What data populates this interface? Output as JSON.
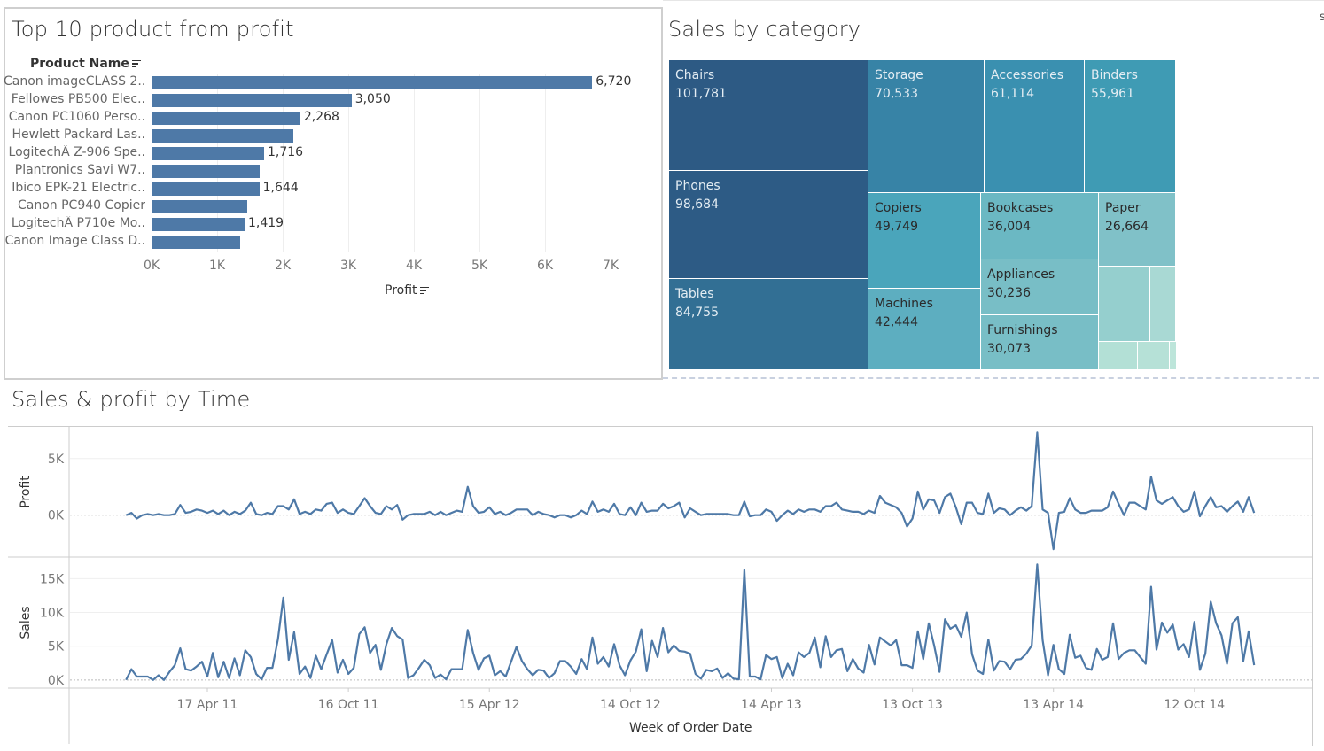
{
  "top_products": {
    "title": "Top 10 product from profit",
    "row_header": "Product Name",
    "axis_title": "Profit",
    "bar_color": "#4e79a7",
    "axis_ticks": [
      "0K",
      "1K",
      "2K",
      "3K",
      "4K",
      "5K",
      "6K",
      "7K"
    ],
    "rows": [
      {
        "name": "Canon imageCLASS 2..",
        "value": 6720,
        "label": "6,720"
      },
      {
        "name": "Fellowes PB500 Elec..",
        "value": 3050,
        "label": "3,050"
      },
      {
        "name": "Canon PC1060 Perso..",
        "value": 2268,
        "label": "2,268"
      },
      {
        "name": "Hewlett Packard Las..",
        "value": 2160,
        "label": ""
      },
      {
        "name": "LogitechÂ Z-906 Spe..",
        "value": 1716,
        "label": "1,716"
      },
      {
        "name": "Plantronics Savi W7..",
        "value": 1650,
        "label": ""
      },
      {
        "name": "Ibico EPK-21 Electric..",
        "value": 1644,
        "label": "1,644"
      },
      {
        "name": "Canon PC940 Copier",
        "value": 1460,
        "label": ""
      },
      {
        "name": "LogitechÂ P710e Mo..",
        "value": 1419,
        "label": "1,419"
      },
      {
        "name": "Canon Image Class D..",
        "value": 1350,
        "label": ""
      }
    ]
  },
  "sales_by_category": {
    "title": "Sales  by category",
    "cells": [
      {
        "name": "Chairs",
        "value": "101,781",
        "color": "#2d5a84"
      },
      {
        "name": "Phones",
        "value": "98,684",
        "color": "#2d5b85"
      },
      {
        "name": "Tables",
        "value": "84,755",
        "color": "#326f94"
      },
      {
        "name": "Storage",
        "value": "70,533",
        "color": "#3783a6"
      },
      {
        "name": "Accessories",
        "value": "61,114",
        "color": "#3a90b0"
      },
      {
        "name": "Binders",
        "value": "55,961",
        "color": "#3f9bb4"
      },
      {
        "name": "Copiers",
        "value": "49,749",
        "color": "#4aa5bb"
      },
      {
        "name": "Machines",
        "value": "42,444",
        "color": "#5daec0"
      },
      {
        "name": "Bookcases",
        "value": "36,004",
        "color": "#6bb8c3"
      },
      {
        "name": "Appliances",
        "value": "30,236",
        "color": "#78bec6"
      },
      {
        "name": "Furnishings",
        "value": "30,073",
        "color": "#78bec6"
      },
      {
        "name": "Paper",
        "value": "26,664",
        "color": "#80c1c8"
      }
    ],
    "small_cell_colors": [
      "#95cfce",
      "#a9d9d4",
      "#b3e0d6",
      "#b6e1d7",
      "#bde5da"
    ]
  },
  "corner_text": "s",
  "time_chart": {
    "title": "Sales  & profit by Time",
    "chart_data": {
      "type": "line",
      "xlabel": "Week of Order Date",
      "line_color": "#4e79a7",
      "x_ticks": [
        {
          "date": "2011-04-17",
          "label": "17 Apr 11"
        },
        {
          "date": "2011-10-16",
          "label": "16 Oct 11"
        },
        {
          "date": "2012-04-15",
          "label": "15 Apr 12"
        },
        {
          "date": "2012-10-14",
          "label": "14 Oct 12"
        },
        {
          "date": "2013-04-14",
          "label": "14 Apr 13"
        },
        {
          "date": "2013-10-13",
          "label": "13 Oct 13"
        },
        {
          "date": "2014-04-13",
          "label": "13 Apr 14"
        },
        {
          "date": "2014-10-12",
          "label": "12 Oct 14"
        }
      ],
      "weeks": [
        "2011-01-02",
        "2011-01-09",
        "2011-01-16",
        "2011-01-23",
        "2011-01-30",
        "2011-02-06",
        "2011-02-13",
        "2011-02-20",
        "2011-02-27",
        "2011-03-06",
        "2011-03-13",
        "2011-03-20",
        "2011-03-27",
        "2011-04-03",
        "2011-04-10",
        "2011-04-17",
        "2011-04-24",
        "2011-05-01",
        "2011-05-08",
        "2011-05-15",
        "2011-05-22",
        "2011-05-29",
        "2011-06-05",
        "2011-06-12",
        "2011-06-19",
        "2011-06-26",
        "2011-07-03",
        "2011-07-10",
        "2011-07-17",
        "2011-07-24",
        "2011-07-31",
        "2011-08-07",
        "2011-08-14",
        "2011-08-21",
        "2011-08-28",
        "2011-09-04",
        "2011-09-11",
        "2011-09-18",
        "2011-09-25",
        "2011-10-02",
        "2011-10-09",
        "2011-10-16",
        "2011-10-23",
        "2011-10-30",
        "2011-11-06",
        "2011-11-13",
        "2011-11-20",
        "2011-11-27",
        "2011-12-04",
        "2011-12-11",
        "2011-12-18",
        "2011-12-25",
        "2012-01-01",
        "2012-01-08",
        "2012-01-15",
        "2012-01-22",
        "2012-01-29",
        "2012-02-05",
        "2012-02-12",
        "2012-02-19",
        "2012-02-26",
        "2012-03-04",
        "2012-03-11",
        "2012-03-18",
        "2012-03-25",
        "2012-04-01",
        "2012-04-08",
        "2012-04-15",
        "2012-04-22",
        "2012-04-29",
        "2012-05-06",
        "2012-05-13",
        "2012-05-20",
        "2012-05-27",
        "2012-06-03",
        "2012-06-10",
        "2012-06-17",
        "2012-06-24",
        "2012-07-01",
        "2012-07-08",
        "2012-07-15",
        "2012-07-22",
        "2012-07-29",
        "2012-08-05",
        "2012-08-12",
        "2012-08-19",
        "2012-08-26",
        "2012-09-02",
        "2012-09-09",
        "2012-09-16",
        "2012-09-23",
        "2012-09-30",
        "2012-10-07",
        "2012-10-14",
        "2012-10-21",
        "2012-10-28",
        "2012-11-04",
        "2012-11-11",
        "2012-11-18",
        "2012-11-25",
        "2012-12-02",
        "2012-12-09",
        "2012-12-16",
        "2012-12-23",
        "2012-12-30",
        "2013-01-06",
        "2013-01-13",
        "2013-01-20",
        "2013-01-27",
        "2013-02-03",
        "2013-02-10",
        "2013-02-17",
        "2013-02-24",
        "2013-03-03",
        "2013-03-10",
        "2013-03-17",
        "2013-03-24",
        "2013-03-31",
        "2013-04-07",
        "2013-04-14",
        "2013-04-21",
        "2013-04-28",
        "2013-05-05",
        "2013-05-12",
        "2013-05-19",
        "2013-05-26",
        "2013-06-02",
        "2013-06-09",
        "2013-06-16",
        "2013-06-23",
        "2013-06-30",
        "2013-07-07",
        "2013-07-14",
        "2013-07-21",
        "2013-07-28",
        "2013-08-04",
        "2013-08-11",
        "2013-08-18",
        "2013-08-25",
        "2013-09-01",
        "2013-09-08",
        "2013-09-15",
        "2013-09-22",
        "2013-09-29",
        "2013-10-06",
        "2013-10-13",
        "2013-10-20",
        "2013-10-27",
        "2013-11-03",
        "2013-11-10",
        "2013-11-17",
        "2013-11-24",
        "2013-12-01",
        "2013-12-08",
        "2013-12-15",
        "2013-12-22",
        "2013-12-29",
        "2014-01-05",
        "2014-01-12",
        "2014-01-19",
        "2014-01-26",
        "2014-02-02",
        "2014-02-09",
        "2014-02-16",
        "2014-02-23",
        "2014-03-02",
        "2014-03-09",
        "2014-03-16",
        "2014-03-23",
        "2014-03-30",
        "2014-04-06",
        "2014-04-13",
        "2014-04-20",
        "2014-04-27",
        "2014-05-04",
        "2014-05-11",
        "2014-05-18",
        "2014-05-25",
        "2014-06-01",
        "2014-06-08",
        "2014-06-15",
        "2014-06-22",
        "2014-06-29",
        "2014-07-06",
        "2014-07-13",
        "2014-07-20",
        "2014-07-27",
        "2014-08-03",
        "2014-08-10",
        "2014-08-17",
        "2014-08-24",
        "2014-08-31",
        "2014-09-07",
        "2014-09-14",
        "2014-09-21",
        "2014-09-28",
        "2014-10-05",
        "2014-10-12",
        "2014-10-19",
        "2014-10-26",
        "2014-11-02",
        "2014-11-09",
        "2014-11-16",
        "2014-11-23",
        "2014-11-30",
        "2014-12-07",
        "2014-12-14",
        "2014-12-21",
        "2014-12-28"
      ],
      "panes": [
        {
          "ylabel": "Profit",
          "ylim": [
            -3700,
            7800
          ],
          "y_ticks": [
            {
              "value": 0,
              "label": "0K"
            },
            {
              "value": 5000,
              "label": "5K"
            }
          ],
          "values": [
            0,
            200,
            -300,
            0,
            100,
            0,
            100,
            0,
            0,
            100,
            900,
            200,
            300,
            500,
            400,
            200,
            400,
            100,
            400,
            0,
            300,
            100,
            400,
            1100,
            100,
            0,
            200,
            100,
            800,
            800,
            500,
            1400,
            100,
            300,
            100,
            500,
            400,
            1000,
            1100,
            200,
            500,
            200,
            100,
            800,
            1500,
            800,
            200,
            100,
            800,
            500,
            900,
            -400,
            0,
            100,
            100,
            100,
            300,
            0,
            300,
            0,
            200,
            400,
            300,
            2500,
            800,
            200,
            300,
            700,
            100,
            300,
            0,
            200,
            500,
            500,
            500,
            0,
            300,
            100,
            0,
            -200,
            0,
            0,
            -200,
            0,
            400,
            100,
            1200,
            300,
            500,
            300,
            1000,
            100,
            0,
            700,
            0,
            1100,
            300,
            400,
            400,
            1000,
            600,
            800,
            1100,
            -200,
            600,
            300,
            0,
            100,
            100,
            100,
            100,
            100,
            0,
            0,
            1200,
            -100,
            0,
            0,
            500,
            300,
            -500,
            0,
            400,
            100,
            500,
            300,
            500,
            500,
            300,
            800,
            800,
            1100,
            500,
            400,
            300,
            300,
            100,
            400,
            200,
            1700,
            1100,
            900,
            700,
            200,
            -1000,
            -300,
            2100,
            500,
            1400,
            1300,
            200,
            1600,
            1900,
            700,
            -800,
            1100,
            1100,
            200,
            100,
            1900,
            200,
            600,
            500,
            0,
            400,
            700,
            400,
            800,
            7300,
            500,
            200,
            -3000,
            200,
            300,
            1500,
            500,
            200,
            200,
            400,
            400,
            400,
            700,
            2100,
            1000,
            0,
            1100,
            1100,
            800,
            500,
            3400,
            1300,
            1000,
            1300,
            1600,
            800,
            300,
            500,
            2100,
            -100,
            800,
            1600,
            700,
            800,
            300,
            800,
            1200,
            300,
            1600,
            200
          ]
        },
        {
          "ylabel": "Sales",
          "ylim": [
            -1200,
            18200
          ],
          "y_ticks": [
            {
              "value": 0,
              "label": "0K"
            },
            {
              "value": 5000,
              "label": "5K"
            },
            {
              "value": 10000,
              "label": "10K"
            },
            {
              "value": 15000,
              "label": "15K"
            }
          ],
          "values": [
            0,
            1600,
            500,
            500,
            500,
            0,
            700,
            0,
            1200,
            2200,
            4700,
            1600,
            1400,
            2000,
            2700,
            500,
            4000,
            400,
            2700,
            300,
            3200,
            700,
            4400,
            3400,
            900,
            100,
            1800,
            1800,
            6000,
            12200,
            3000,
            7100,
            900,
            2000,
            300,
            3600,
            1600,
            3800,
            5900,
            1100,
            3000,
            900,
            1800,
            6800,
            7800,
            4000,
            5200,
            1500,
            5300,
            7700,
            6500,
            6000,
            300,
            700,
            1800,
            3000,
            2200,
            300,
            800,
            100,
            1600,
            1600,
            1600,
            7400,
            4000,
            1500,
            3200,
            3600,
            700,
            1300,
            500,
            2700,
            4900,
            2800,
            1600,
            700,
            1500,
            1400,
            300,
            1000,
            2800,
            2800,
            2000,
            900,
            3100,
            1600,
            6300,
            2400,
            3400,
            2000,
            5300,
            2200,
            700,
            2900,
            4200,
            7500,
            1300,
            5800,
            3400,
            7700,
            4100,
            5100,
            4300,
            4200,
            3900,
            900,
            200,
            1500,
            1300,
            1700,
            300,
            1000,
            200,
            100,
            16300,
            500,
            500,
            100,
            3700,
            3100,
            3400,
            300,
            2400,
            700,
            4100,
            3400,
            4000,
            6300,
            1900,
            6500,
            3400,
            4400,
            4600,
            1300,
            3100,
            1700,
            1100,
            5200,
            2300,
            6300,
            5700,
            5100,
            5900,
            2200,
            2200,
            1800,
            7200,
            3100,
            8400,
            5100,
            1200,
            9000,
            7600,
            8100,
            6400,
            10000,
            3800,
            1400,
            900,
            6000,
            1400,
            2800,
            2700,
            1600,
            3000,
            3100,
            3900,
            5100,
            17100,
            5900,
            700,
            5200,
            1600,
            900,
            6700,
            3300,
            3600,
            1800,
            1500,
            4600,
            3000,
            3400,
            8400,
            3100,
            4000,
            4400,
            4400,
            3400,
            2400,
            13800,
            4500,
            8500,
            7000,
            8200,
            4500,
            5300,
            3400,
            8600,
            1500,
            3900,
            11600,
            8400,
            6600,
            2400,
            8400,
            9300,
            2800,
            7200,
            2200
          ]
        }
      ]
    }
  }
}
